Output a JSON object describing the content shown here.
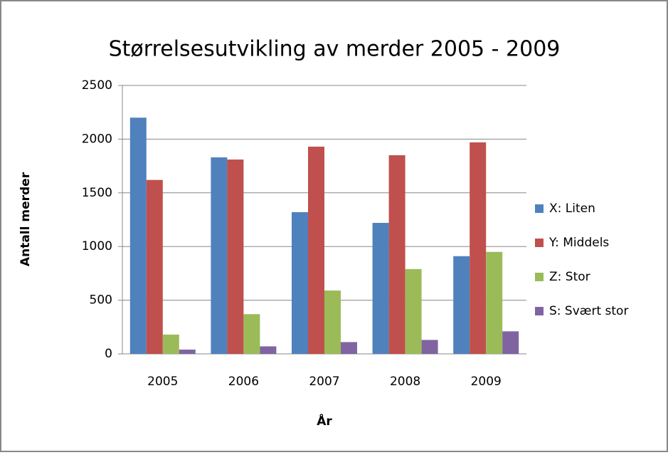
{
  "chart_data": {
    "type": "bar",
    "title": "Størrelsesutvikling av merder 2005 - 2009",
    "xlabel": "År",
    "ylabel": "Antall merder",
    "categories": [
      "2005",
      "2006",
      "2007",
      "2008",
      "2009"
    ],
    "series": [
      {
        "name": "X:  Liten",
        "color": "#4f81bd",
        "values": [
          2200,
          1830,
          1320,
          1220,
          910
        ]
      },
      {
        "name": "Y:  Middels",
        "color": "#c0504d",
        "values": [
          1620,
          1810,
          1930,
          1850,
          1970
        ]
      },
      {
        "name": "Z:  Stor",
        "color": "#9bbb59",
        "values": [
          180,
          370,
          590,
          790,
          950
        ]
      },
      {
        "name": "S: Svært stor",
        "color": "#8064a2",
        "values": [
          40,
          70,
          110,
          130,
          210
        ]
      }
    ],
    "ylim": [
      0,
      2500
    ],
    "yticks": [
      0,
      500,
      1000,
      1500,
      2000,
      2500
    ],
    "grid": true,
    "legend": "right"
  }
}
